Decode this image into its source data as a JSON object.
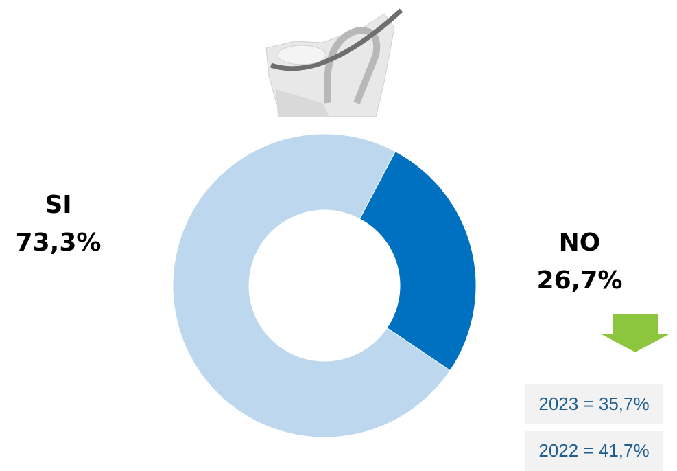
{
  "chart_data": {
    "type": "donut",
    "categories": [
      "SI",
      "NO"
    ],
    "values": [
      73.3,
      26.7
    ],
    "value_labels": [
      "73,3%",
      "26,7%"
    ],
    "colors": [
      "#bdd7ee",
      "#0070c0"
    ],
    "annotations": [
      "2023 = 35,7%",
      "2022 = 41,7%"
    ]
  }
}
